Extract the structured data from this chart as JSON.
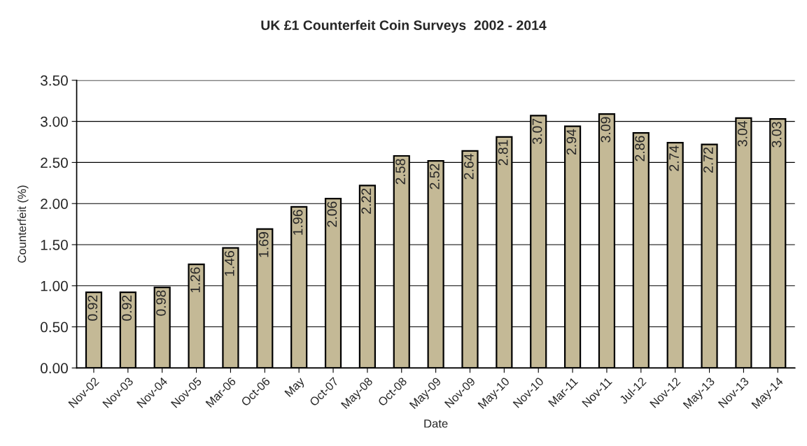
{
  "chart_data": {
    "type": "bar",
    "title": "UK £1 Counterfeit Coin Surveys  2002 - 2014",
    "xlabel": "Date",
    "ylabel": "Counterfeit (%)",
    "categories": [
      "Nov-02",
      "Nov-03",
      "Nov-04",
      "Nov-05",
      "Mar-06",
      "Oct-06",
      "May",
      "Oct-07",
      "May-08",
      "Oct-08",
      "May-09",
      "Nov-09",
      "May-10",
      "Nov-10",
      "Mar-11",
      "Nov-11",
      "Jul-12",
      "Nov-12",
      "May-13",
      "Nov-13",
      "May-14"
    ],
    "values": [
      0.92,
      0.92,
      0.98,
      1.26,
      1.46,
      1.69,
      1.96,
      2.06,
      2.22,
      2.58,
      2.52,
      2.64,
      2.81,
      3.07,
      2.94,
      3.09,
      2.86,
      2.74,
      2.72,
      3.04,
      3.03
    ],
    "color": "#c4b996",
    "ylim": [
      0,
      3.5
    ],
    "yticks": [
      {
        "value": 0,
        "label": "0.00"
      },
      {
        "value": 0.5,
        "label": "0.50"
      },
      {
        "value": 1,
        "label": "1.00"
      },
      {
        "value": 1.5,
        "label": "1.50"
      },
      {
        "value": 2,
        "label": "2.00"
      },
      {
        "value": 2.5,
        "label": "2.50"
      },
      {
        "value": 3,
        "label": "3.00"
      },
      {
        "value": 3.5,
        "label": "3.50"
      }
    ],
    "grid": "y",
    "data_labels": true,
    "legend": false
  }
}
